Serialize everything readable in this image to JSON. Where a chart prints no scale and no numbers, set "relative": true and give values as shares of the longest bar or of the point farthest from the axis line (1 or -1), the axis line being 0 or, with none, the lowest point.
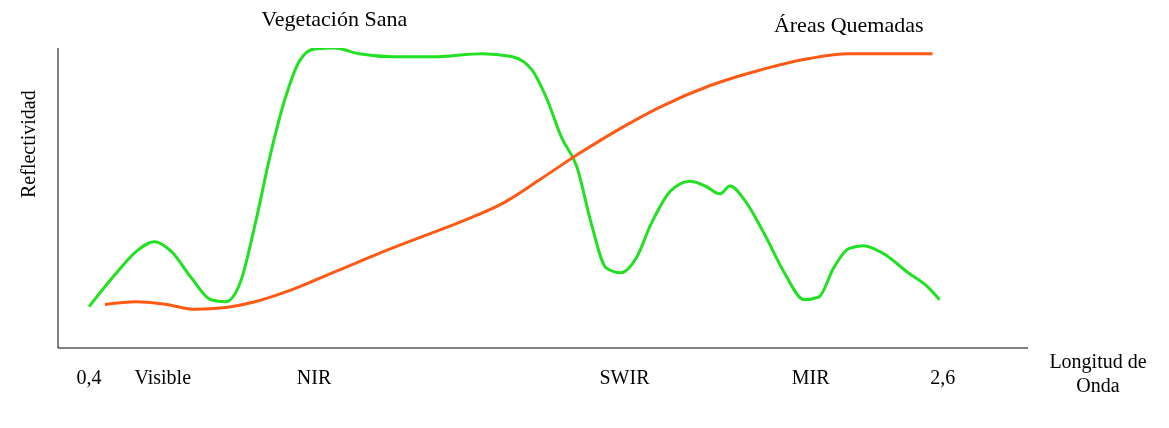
{
  "chart_data": {
    "type": "line",
    "relative": true,
    "ylabel": "Reflectividad",
    "xlabel": "Longitud de Onda",
    "xlim": [
      0.32,
      2.82
    ],
    "xticks": [
      {
        "value": 0.4,
        "label": "0,4"
      },
      {
        "value": 0.59,
        "label": "Visible"
      },
      {
        "value": 0.98,
        "label": "NIR"
      },
      {
        "value": 1.78,
        "label": "SWIR"
      },
      {
        "value": 2.26,
        "label": "MIR"
      },
      {
        "value": 2.6,
        "label": "2,6"
      }
    ],
    "grid": false,
    "legend": false,
    "marker": "none",
    "line_style": "solid",
    "series": [
      {
        "name": "Vegetación Sana",
        "color": "#22e022",
        "x": [
          0.4,
          0.471,
          0.522,
          0.568,
          0.612,
          0.663,
          0.714,
          0.752,
          0.79,
          0.828,
          0.866,
          0.905,
          0.943,
          0.981,
          1.032,
          1.096,
          1.185,
          1.287,
          1.415,
          1.491,
          1.542,
          1.58,
          1.618,
          1.657,
          1.695,
          1.733,
          1.771,
          1.81,
          1.848,
          1.899,
          1.95,
          1.988,
          2.026,
          2.052,
          2.09,
          2.141,
          2.192,
          2.243,
          2.281,
          2.319,
          2.358,
          2.396,
          2.447,
          2.511,
          2.562,
          2.592
        ],
        "values": [
          0.138,
          0.251,
          0.322,
          0.354,
          0.322,
          0.235,
          0.161,
          0.154,
          0.219,
          0.412,
          0.637,
          0.83,
          0.958,
          0.997,
          1,
          0.981,
          0.971,
          0.971,
          0.981,
          0.971,
          0.926,
          0.83,
          0.701,
          0.605,
          0.412,
          0.267,
          0.251,
          0.299,
          0.412,
          0.524,
          0.556,
          0.54,
          0.514,
          0.54,
          0.492,
          0.379,
          0.251,
          0.161,
          0.17,
          0.267,
          0.331,
          0.341,
          0.315,
          0.251,
          0.203,
          0.161
        ]
      },
      {
        "name": "Áreas Quemadas",
        "color": "#ff5a14",
        "x": [
          0.441,
          0.522,
          0.599,
          0.675,
          0.752,
          0.828,
          0.905,
          0.981,
          1.058,
          1.16,
          1.262,
          1.364,
          1.466,
          1.567,
          1.669,
          1.771,
          1.873,
          2.001,
          2.128,
          2.256,
          2.358,
          2.46,
          2.574
        ],
        "values": [
          0.145,
          0.154,
          0.145,
          0.129,
          0.135,
          0.154,
          0.186,
          0.225,
          0.267,
          0.322,
          0.373,
          0.424,
          0.482,
          0.566,
          0.653,
          0.733,
          0.804,
          0.875,
          0.926,
          0.965,
          0.981,
          0.981,
          0.981
        ]
      }
    ]
  }
}
